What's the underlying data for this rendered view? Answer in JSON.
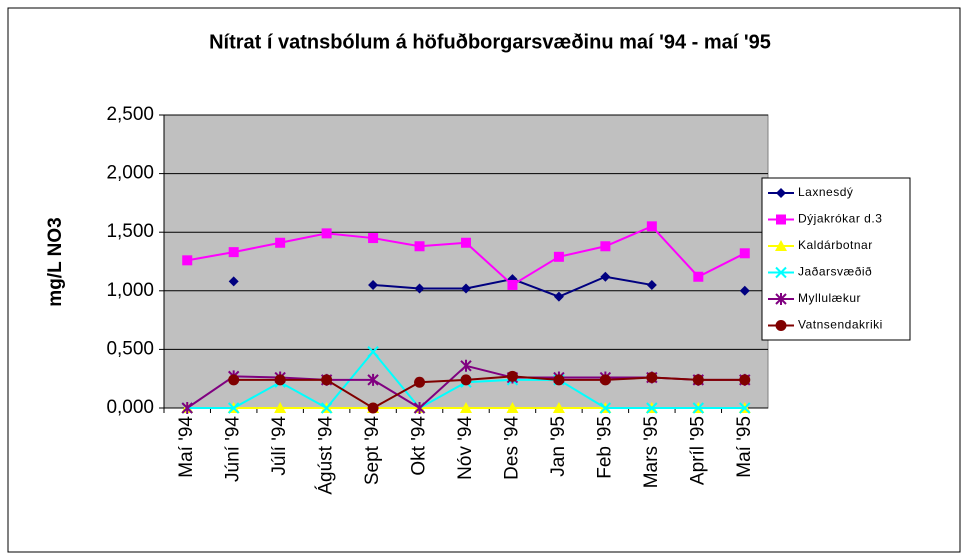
{
  "chart_data": {
    "type": "line",
    "title": "Nítrat í vatnsbólum á höfuðborgarsvæðinu maí '94 - maí '95",
    "y_label": "mg/L NO3",
    "categories": [
      "Maí '94",
      "Júní '94",
      "Júlí '94",
      "Ágúst '94",
      "Sept '94",
      "Okt '94",
      "Nóv '94",
      "Des '94",
      "Jan '95",
      "Feb '95",
      "Mars '95",
      "Apríl '95",
      "Maí '95"
    ],
    "series": [
      {
        "name": "Laxnesdý",
        "color": "#000080",
        "marker": "diamond",
        "values": [
          null,
          1.08,
          null,
          null,
          1.05,
          1.02,
          1.02,
          1.1,
          0.95,
          1.12,
          1.05,
          null,
          1.0
        ]
      },
      {
        "name": "Dýjakrókar d.3",
        "color": "#ff00ff",
        "marker": "square",
        "values": [
          1.26,
          1.33,
          1.41,
          1.49,
          1.45,
          1.38,
          1.41,
          1.05,
          1.29,
          1.38,
          1.55,
          1.12,
          1.32
        ]
      },
      {
        "name": "Kaldárbotnar",
        "color": "#ffff00",
        "marker": "triangle",
        "values": [
          0,
          0,
          0,
          0,
          0,
          0,
          0,
          0,
          0,
          0,
          0,
          0,
          0
        ]
      },
      {
        "name": "Jaðarsvæðið",
        "color": "#00ffff",
        "marker": "x",
        "values": [
          0,
          0,
          0.22,
          0,
          0.48,
          0,
          0.22,
          0.24,
          0.24,
          0,
          0,
          0,
          0
        ]
      },
      {
        "name": "Myllulækur",
        "color": "#800080",
        "marker": "star",
        "values": [
          0,
          0.27,
          0.26,
          0.24,
          0.24,
          0,
          0.36,
          0.26,
          0.26,
          0.26,
          0.26,
          0.24,
          0.24
        ]
      },
      {
        "name": "Vatnsendakriki",
        "color": "#800000",
        "marker": "circle",
        "values": [
          null,
          0.24,
          0.24,
          0.24,
          0,
          0.22,
          0.24,
          0.27,
          0.24,
          0.24,
          0.26,
          0.24,
          0.24
        ]
      }
    ],
    "ylim": [
      0,
      2.5
    ],
    "yticks": [
      {
        "value": 0,
        "label": "0,000"
      },
      {
        "value": 0.5,
        "label": "0,500"
      },
      {
        "value": 1,
        "label": "1,000"
      },
      {
        "value": 1.5,
        "label": "1,500"
      },
      {
        "value": 2,
        "label": "2,000"
      },
      {
        "value": 2.5,
        "label": "2,500"
      }
    ],
    "grid": true,
    "plot_background": "#c0c0c0",
    "legend": "right"
  }
}
